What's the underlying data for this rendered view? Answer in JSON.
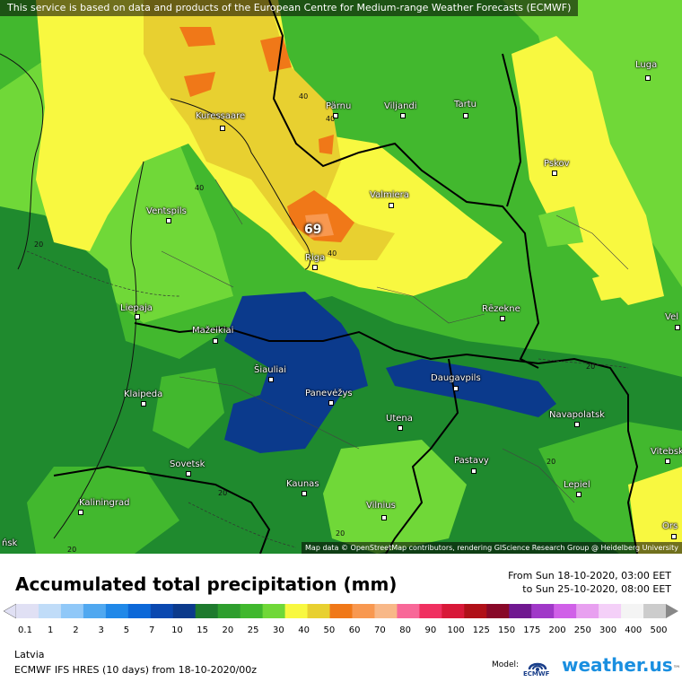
{
  "attribution_top": "This service is based on data and products of the European Centre for Medium-range Weather Forecasts (ECMWF)",
  "attribution_bottom": "Map data © OpenStreetMap contributors, rendering GIScience Research Group @ Heidelberg University",
  "title": "Accumulated total precipitation (mm)",
  "period": {
    "from": "From Sun 18-10-2020, 03:00 EET",
    "to": "to Sun 25-10-2020, 08:00 EET"
  },
  "legend": {
    "ticks": [
      "0.1",
      "1",
      "2",
      "3",
      "5",
      "7",
      "10",
      "15",
      "20",
      "25",
      "30",
      "40",
      "50",
      "60",
      "70",
      "80",
      "90",
      "100",
      "125",
      "150",
      "175",
      "200",
      "250",
      "300",
      "400",
      "500"
    ],
    "colors": [
      "#e0e0f4",
      "#c0dcf8",
      "#90c8f8",
      "#50a8f0",
      "#2088e8",
      "#0c68d8",
      "#0a48b0",
      "#0b3a8c",
      "#1e7a2e",
      "#2e9e2e",
      "#40b82e",
      "#70d838",
      "#f8f840",
      "#e8d030",
      "#f07818",
      "#f89850",
      "#f8b888",
      "#f86898",
      "#f03060",
      "#d81838",
      "#b01018",
      "#880828",
      "#701890",
      "#a038c8",
      "#d060e8",
      "#e8a0f0",
      "#f4d0f8",
      "#f4f4f4",
      "#cccccc"
    ]
  },
  "cities": [
    {
      "name": "Luga"
    },
    {
      "name": "Pärnu"
    },
    {
      "name": "Viljandi"
    },
    {
      "name": "Tartu"
    },
    {
      "name": "Kuressaare"
    },
    {
      "name": "Pskov"
    },
    {
      "name": "Valmiera"
    },
    {
      "name": "Ventspils"
    },
    {
      "name": "Riga"
    },
    {
      "name": "Liepaja"
    },
    {
      "name": "Rēzekne"
    },
    {
      "name": "Mažeikiai"
    },
    {
      "name": "Šiauliai"
    },
    {
      "name": "Panevėžys"
    },
    {
      "name": "Daugavpils"
    },
    {
      "name": "Klaipeda"
    },
    {
      "name": "Utena"
    },
    {
      "name": "Navapolatsk"
    },
    {
      "name": "Sovetsk"
    },
    {
      "name": "Pastavy"
    },
    {
      "name": "Vitebsk"
    },
    {
      "name": "Kaunas"
    },
    {
      "name": "Lepiel"
    },
    {
      "name": "Kaliningrad"
    },
    {
      "name": "Vilnius"
    },
    {
      "name": "Vel"
    },
    {
      "name": "Ors"
    },
    {
      "name": "ńsk"
    }
  ],
  "contour_labels": [
    "40",
    "40",
    "40",
    "40",
    "20",
    "20",
    "20",
    "20",
    "20",
    "20"
  ],
  "peak_value": "69",
  "footer": {
    "region": "Latvia",
    "model_run": "ECMWF IFS HRES (10 days) from 18-10-2020/00z",
    "model_label": "Model:",
    "logo_text": "ECMWF",
    "brand": "weather.us",
    "brand_tld": "™"
  }
}
